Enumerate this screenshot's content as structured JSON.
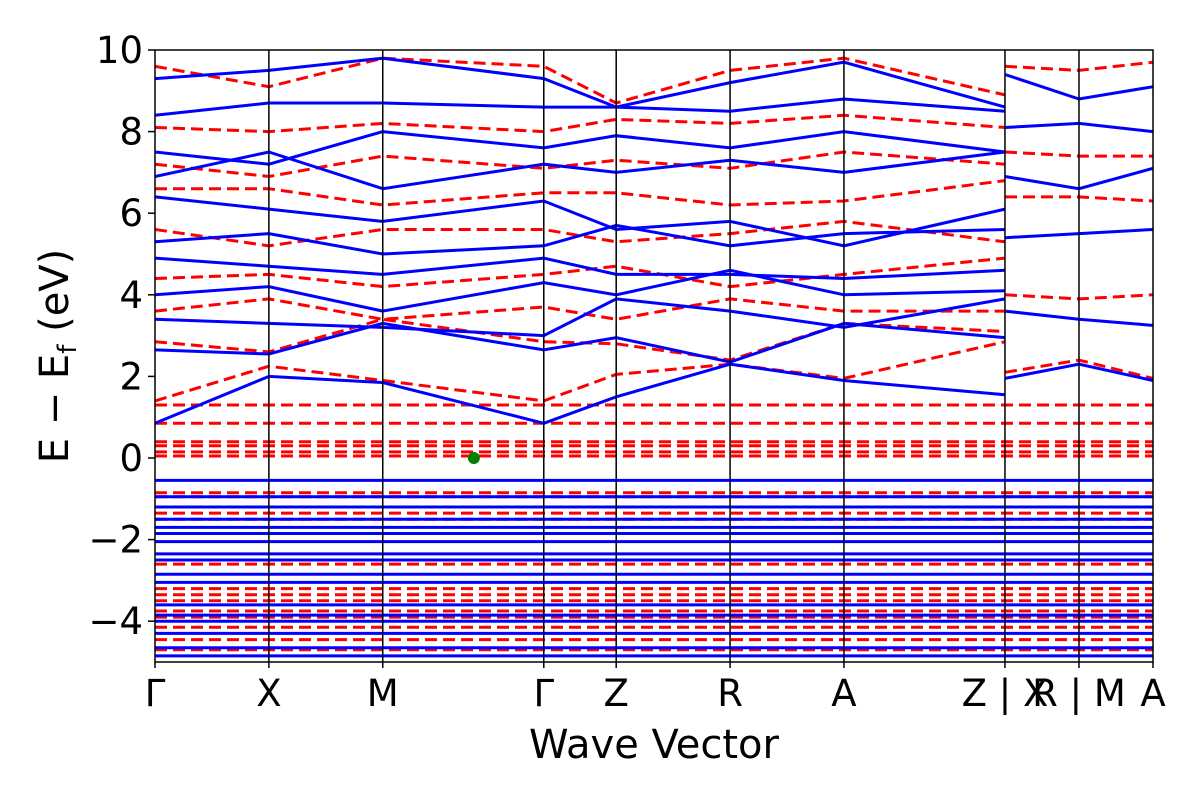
{
  "chart_data": {
    "type": "line",
    "xlabel": "Wave Vector",
    "ylabel": "E − E",
    "ylabel_subscript": "f",
    "ylabel_unit": " (eV)",
    "ylim": [
      -5,
      10
    ],
    "yticks": [
      10,
      8,
      6,
      4,
      2,
      0,
      -2,
      -4
    ],
    "ytick_labels": [
      "10",
      "8",
      "6",
      "4",
      "2",
      "0",
      "−2",
      "−4"
    ],
    "high_symmetry_points": [
      {
        "label": "Γ",
        "position": 0
      },
      {
        "label": "X",
        "position": 1
      },
      {
        "label": "M",
        "position": 2
      },
      {
        "label": "Γ",
        "position": 3.414
      },
      {
        "label": "Z",
        "position": 4.05
      },
      {
        "label": "R",
        "position": 5.05
      },
      {
        "label": "A",
        "position": 6.05
      },
      {
        "label": "Z | X",
        "position": 7.464
      },
      {
        "label": "R | M",
        "position": 8.114
      },
      {
        "label": "A",
        "position": 8.764
      }
    ],
    "xlim": [
      0,
      8.764
    ],
    "series": [
      {
        "style": "solid",
        "color": "#0000ff"
      },
      {
        "style": "dashed",
        "color": "#ff0000"
      }
    ],
    "marker": {
      "x": 2.8,
      "y": 0,
      "color": "#008000"
    },
    "flat_bands": {
      "solid": [
        -0.55,
        -0.95,
        -1.2,
        -1.5,
        -1.7,
        -1.85,
        -2.05,
        -2.35,
        -2.5,
        -2.85,
        -3.05,
        -3.6,
        -3.85,
        -4.0,
        -4.3,
        -4.65,
        -4.85
      ],
      "dashed": [
        0.05,
        0.15,
        0.3,
        0.4,
        0.85,
        1.3,
        -0.85,
        -0.95,
        -1.35,
        -1.5,
        -2.6,
        -3.2,
        -3.35,
        -3.5,
        -3.75,
        -3.9,
        -4.15,
        -4.45,
        -4.7
      ]
    },
    "dispersive_bands": {
      "solid": [
        [
          [
            0,
            0.85
          ],
          [
            1,
            2.0
          ],
          [
            2,
            1.85
          ],
          [
            3.414,
            0.85
          ],
          [
            4.05,
            1.5
          ],
          [
            5.05,
            2.3
          ],
          [
            6.05,
            1.9
          ],
          [
            7.464,
            1.55
          ]
        ],
        [
          [
            0,
            2.65
          ],
          [
            1,
            2.55
          ],
          [
            2,
            3.3
          ],
          [
            3.414,
            2.65
          ],
          [
            4.05,
            2.95
          ],
          [
            5.05,
            2.35
          ],
          [
            6.05,
            3.3
          ],
          [
            7.464,
            2.95
          ]
        ],
        [
          [
            0,
            3.4
          ],
          [
            1,
            3.3
          ],
          [
            2,
            3.2
          ],
          [
            3.414,
            3.0
          ],
          [
            4.05,
            3.9
          ],
          [
            5.05,
            3.6
          ],
          [
            6.05,
            3.2
          ],
          [
            7.464,
            3.9
          ]
        ],
        [
          [
            0,
            4.0
          ],
          [
            1,
            4.2
          ],
          [
            2,
            3.6
          ],
          [
            3.414,
            4.3
          ],
          [
            4.05,
            4.0
          ],
          [
            5.05,
            4.6
          ],
          [
            6.05,
            4.0
          ],
          [
            7.464,
            4.1
          ]
        ],
        [
          [
            0,
            4.9
          ],
          [
            1,
            4.7
          ],
          [
            2,
            4.5
          ],
          [
            3.414,
            4.9
          ],
          [
            4.05,
            4.5
          ],
          [
            5.05,
            4.5
          ],
          [
            6.05,
            4.4
          ],
          [
            7.464,
            4.6
          ]
        ],
        [
          [
            0,
            5.3
          ],
          [
            1,
            5.5
          ],
          [
            2,
            5.0
          ],
          [
            3.414,
            5.2
          ],
          [
            4.05,
            5.7
          ],
          [
            5.05,
            5.2
          ],
          [
            6.05,
            5.5
          ],
          [
            7.464,
            5.6
          ]
        ],
        [
          [
            0,
            6.4
          ],
          [
            1,
            6.1
          ],
          [
            2,
            5.8
          ],
          [
            3.414,
            6.3
          ],
          [
            4.05,
            5.6
          ],
          [
            5.05,
            5.8
          ],
          [
            6.05,
            5.2
          ],
          [
            7.464,
            6.1
          ]
        ],
        [
          [
            0,
            6.9
          ],
          [
            1,
            7.5
          ],
          [
            2,
            6.6
          ],
          [
            3.414,
            7.2
          ],
          [
            4.05,
            7.0
          ],
          [
            5.05,
            7.3
          ],
          [
            6.05,
            7.0
          ],
          [
            7.464,
            7.5
          ]
        ],
        [
          [
            0,
            7.5
          ],
          [
            1,
            7.2
          ],
          [
            2,
            8.0
          ],
          [
            3.414,
            7.6
          ],
          [
            4.05,
            7.9
          ],
          [
            5.05,
            7.6
          ],
          [
            6.05,
            8.0
          ],
          [
            7.464,
            7.5
          ]
        ],
        [
          [
            0,
            8.4
          ],
          [
            1,
            8.7
          ],
          [
            2,
            8.7
          ],
          [
            3.414,
            8.6
          ],
          [
            4.05,
            8.6
          ],
          [
            5.05,
            8.5
          ],
          [
            6.05,
            8.8
          ],
          [
            7.464,
            8.5
          ]
        ],
        [
          [
            0,
            9.3
          ],
          [
            1,
            9.5
          ],
          [
            2,
            9.8
          ],
          [
            3.414,
            9.3
          ],
          [
            4.05,
            8.6
          ],
          [
            5.05,
            9.2
          ],
          [
            6.05,
            9.7
          ],
          [
            7.464,
            8.6
          ]
        ]
      ],
      "dashed": [
        [
          [
            0,
            1.4
          ],
          [
            1,
            2.25
          ],
          [
            2,
            1.9
          ],
          [
            3.414,
            1.4
          ],
          [
            4.05,
            2.05
          ],
          [
            5.05,
            2.3
          ],
          [
            6.05,
            1.95
          ],
          [
            7.464,
            2.85
          ]
        ],
        [
          [
            0,
            2.85
          ],
          [
            1,
            2.6
          ],
          [
            2,
            3.4
          ],
          [
            3.414,
            2.85
          ],
          [
            4.05,
            2.8
          ],
          [
            5.05,
            2.4
          ],
          [
            6.05,
            3.3
          ],
          [
            7.464,
            3.1
          ]
        ],
        [
          [
            0,
            3.6
          ],
          [
            1,
            3.9
          ],
          [
            2,
            3.4
          ],
          [
            3.414,
            3.7
          ],
          [
            4.05,
            3.4
          ],
          [
            5.05,
            3.9
          ],
          [
            6.05,
            3.6
          ],
          [
            7.464,
            3.6
          ]
        ],
        [
          [
            0,
            4.4
          ],
          [
            1,
            4.5
          ],
          [
            2,
            4.2
          ],
          [
            3.414,
            4.5
          ],
          [
            4.05,
            4.7
          ],
          [
            5.05,
            4.2
          ],
          [
            6.05,
            4.5
          ],
          [
            7.464,
            4.9
          ]
        ],
        [
          [
            0,
            5.6
          ],
          [
            1,
            5.2
          ],
          [
            2,
            5.6
          ],
          [
            3.414,
            5.6
          ],
          [
            4.05,
            5.3
          ],
          [
            5.05,
            5.5
          ],
          [
            6.05,
            5.8
          ],
          [
            7.464,
            5.3
          ]
        ],
        [
          [
            0,
            6.6
          ],
          [
            1,
            6.6
          ],
          [
            2,
            6.2
          ],
          [
            3.414,
            6.5
          ],
          [
            4.05,
            6.5
          ],
          [
            5.05,
            6.2
          ],
          [
            6.05,
            6.3
          ],
          [
            7.464,
            6.8
          ]
        ],
        [
          [
            0,
            7.2
          ],
          [
            1,
            6.9
          ],
          [
            2,
            7.4
          ],
          [
            3.414,
            7.1
          ],
          [
            4.05,
            7.3
          ],
          [
            5.05,
            7.1
          ],
          [
            6.05,
            7.5
          ],
          [
            7.464,
            7.2
          ]
        ],
        [
          [
            0,
            8.1
          ],
          [
            1,
            8.0
          ],
          [
            2,
            8.2
          ],
          [
            3.414,
            8.0
          ],
          [
            4.05,
            8.3
          ],
          [
            5.05,
            8.2
          ],
          [
            6.05,
            8.4
          ],
          [
            7.464,
            8.1
          ]
        ],
        [
          [
            0,
            9.6
          ],
          [
            1,
            9.1
          ],
          [
            2,
            9.8
          ],
          [
            3.414,
            9.6
          ],
          [
            4.05,
            8.7
          ],
          [
            5.05,
            9.5
          ],
          [
            6.05,
            9.8
          ],
          [
            7.464,
            8.9
          ]
        ]
      ],
      "solid_tail": [
        [
          [
            7.464,
            1.95
          ],
          [
            8.114,
            2.3
          ],
          [
            8.764,
            1.9
          ]
        ],
        [
          [
            7.464,
            3.6
          ],
          [
            8.114,
            3.4
          ],
          [
            8.764,
            3.25
          ]
        ],
        [
          [
            7.464,
            5.4
          ],
          [
            8.114,
            5.5
          ],
          [
            8.764,
            5.6
          ]
        ],
        [
          [
            7.464,
            6.9
          ],
          [
            8.114,
            6.6
          ],
          [
            8.764,
            7.1
          ]
        ],
        [
          [
            7.464,
            8.1
          ],
          [
            8.114,
            8.2
          ],
          [
            8.764,
            8.0
          ]
        ],
        [
          [
            7.464,
            9.4
          ],
          [
            8.114,
            8.8
          ],
          [
            8.764,
            9.1
          ]
        ]
      ],
      "dashed_tail": [
        [
          [
            7.464,
            2.1
          ],
          [
            8.114,
            2.4
          ],
          [
            8.764,
            1.95
          ]
        ],
        [
          [
            7.464,
            4.0
          ],
          [
            8.114,
            3.9
          ],
          [
            8.764,
            4.0
          ]
        ],
        [
          [
            7.464,
            6.4
          ],
          [
            8.114,
            6.4
          ],
          [
            8.764,
            6.3
          ]
        ],
        [
          [
            7.464,
            7.5
          ],
          [
            8.114,
            7.4
          ],
          [
            8.764,
            7.4
          ]
        ],
        [
          [
            7.464,
            9.6
          ],
          [
            8.114,
            9.5
          ],
          [
            8.764,
            9.7
          ]
        ]
      ]
    }
  }
}
